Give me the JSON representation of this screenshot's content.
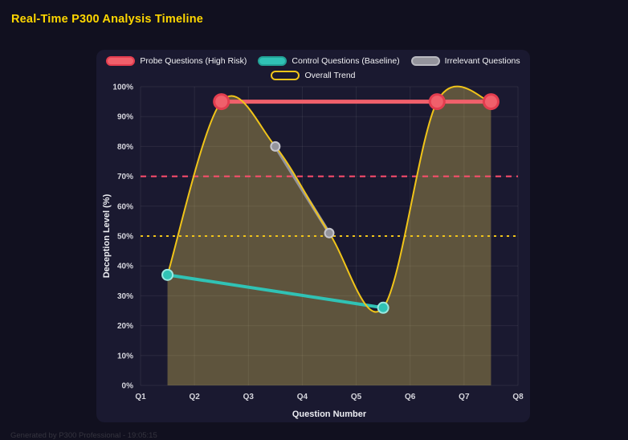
{
  "header": {
    "title": "Real-Time P300 Analysis Timeline"
  },
  "footer": {
    "text": "Generated by P300 Professional - 19:05:15"
  },
  "colors": {
    "background": "#11101f",
    "card": "#1a1930",
    "title": "#ffd700",
    "grid": "rgba(255,255,255,0.07)",
    "tick_text": "#d6d6dd",
    "axis_title_text": "#ecedf2"
  },
  "chart_data": {
    "type": "line",
    "xlabel": "Question Number",
    "ylabel": "Deception Level (%)",
    "x_tick_labels": [
      "Q1",
      "Q2",
      "Q3",
      "Q4",
      "Q5",
      "Q6",
      "Q7",
      "Q8"
    ],
    "y_tick_labels": [
      "0%",
      "10%",
      "20%",
      "30%",
      "40%",
      "50%",
      "60%",
      "70%",
      "80%",
      "90%",
      "100%"
    ],
    "xlim": [
      1,
      8
    ],
    "ylim": [
      0,
      100
    ],
    "grid": true,
    "legend_position": "top",
    "series": [
      {
        "name": "Probe Questions (High Risk)",
        "line_style": "straight",
        "color": "#f0606b",
        "swatch_border": "#e33d4f",
        "point_stroke": "#e33d4f",
        "point_radius": 9,
        "point_stroke_width": 3,
        "line_width": 5,
        "points": [
          [
            2.5,
            95
          ],
          [
            6.5,
            95
          ],
          [
            7.5,
            95
          ]
        ]
      },
      {
        "name": "Control Questions (Baseline)",
        "line_style": "straight",
        "color": "#30c2b5",
        "swatch_border": "#23a196",
        "point_stroke": "#9ae8e0",
        "point_radius": 6.5,
        "point_stroke_width": 2,
        "line_width": 4,
        "points": [
          [
            1.5,
            37
          ],
          [
            5.5,
            26
          ]
        ]
      },
      {
        "name": "Irrelevant Questions",
        "line_style": "straight",
        "color": "#94949c",
        "swatch_border": "#b9b9c0",
        "point_stroke": "#c6c6cd",
        "point_radius": 5.5,
        "point_stroke_width": 2,
        "line_width": 4,
        "points": [
          [
            3.5,
            80
          ],
          [
            4.5,
            51
          ]
        ]
      },
      {
        "name": "Overall Trend",
        "line_style": "smooth",
        "color": "#f0c419",
        "legend_fill": "rgba(0,0,0,0)",
        "swatch_border": "#f0c419",
        "fill": "rgba(240,212,90,0.32)",
        "point_radius": 0,
        "point_stroke_width": 0,
        "line_width": 2,
        "points": [
          [
            1.5,
            37
          ],
          [
            2.5,
            95
          ],
          [
            3.5,
            80
          ],
          [
            4.5,
            51
          ],
          [
            5.5,
            26
          ],
          [
            6.5,
            95
          ],
          [
            7.5,
            95
          ]
        ]
      }
    ],
    "thresholds": [
      {
        "value": 70,
        "color": "#ff4d6d",
        "dash": "7 6"
      },
      {
        "value": 50,
        "color": "#f0c419",
        "dash": "3 5"
      }
    ]
  }
}
